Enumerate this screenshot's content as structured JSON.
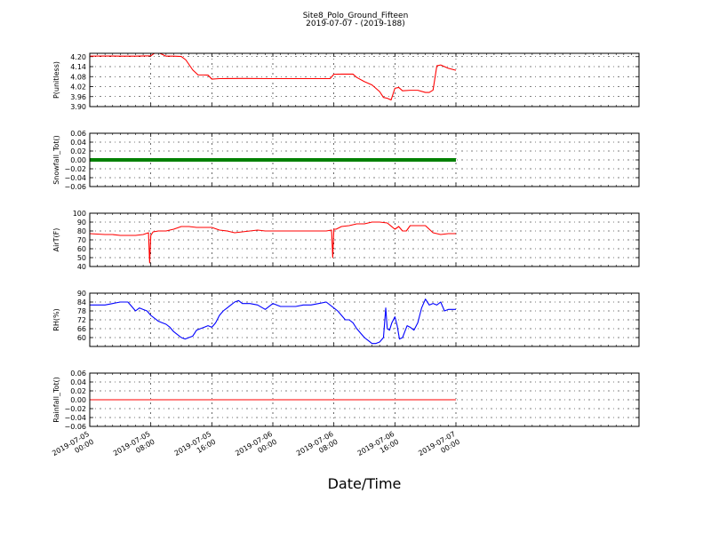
{
  "figure": {
    "title": "Site8_Polo_Ground_Fifteen",
    "subtitle": "2019-07-07 - (2019-188)",
    "xlabel": "Date/Time"
  },
  "chart_data": [
    {
      "type": "line",
      "ylabel": "P(unitless)",
      "ylim": [
        3.9,
        4.22
      ],
      "yticks": [
        "4.20",
        "4.14",
        "4.08",
        "4.02",
        "3.96",
        "3.90"
      ],
      "xlim": [
        0,
        72
      ],
      "xtick_hours": [
        0,
        8,
        16,
        24,
        32,
        40,
        48
      ],
      "xtick_labels": [
        [
          "2019-07-05",
          "00:00"
        ],
        [
          "2019-07-05",
          "08:00"
        ],
        [
          "2019-07-05",
          "16:00"
        ],
        [
          "2019-07-06",
          "00:00"
        ],
        [
          "2019-07-06",
          "08:00"
        ],
        [
          "2019-07-06",
          "16:00"
        ],
        [
          "2019-07-07",
          "00:00"
        ]
      ],
      "grid": true,
      "series": [
        {
          "color": "#ff0000",
          "x": [
            0,
            2,
            4,
            6,
            8,
            8.6,
            9,
            10,
            11,
            12,
            12.6,
            13.5,
            14.2,
            15,
            15.5,
            16,
            17,
            20,
            24,
            28,
            30,
            31.5,
            32,
            33,
            34.5,
            35,
            36,
            37,
            38,
            38.5,
            39,
            39.5,
            40,
            40.5,
            41,
            42,
            43,
            44,
            44.5,
            45,
            45.5,
            46,
            47,
            48
          ],
          "y": [
            4.203,
            4.204,
            4.203,
            4.203,
            4.205,
            4.224,
            4.224,
            4.203,
            4.203,
            4.201,
            4.18,
            4.12,
            4.09,
            4.09,
            4.089,
            4.065,
            4.068,
            4.069,
            4.068,
            4.068,
            4.068,
            4.068,
            4.094,
            4.095,
            4.095,
            4.075,
            4.05,
            4.03,
            3.99,
            3.955,
            3.95,
            3.94,
            4.01,
            4.015,
            3.995,
            3.998,
            3.998,
            3.985,
            3.985,
            3.999,
            4.145,
            4.15,
            4.13,
            4.118
          ]
        }
      ]
    },
    {
      "type": "line",
      "ylabel": "Snowfall_Tot()",
      "ylim": [
        -0.06,
        0.06
      ],
      "yticks": [
        "0.06",
        "0.04",
        "0.02",
        "0.00",
        "−0.02",
        "−0.04",
        "−0.06"
      ],
      "xlim": [
        0,
        72
      ],
      "grid": true,
      "series": [
        {
          "color": "#008000",
          "x": [
            0,
            48
          ],
          "y": [
            0,
            0
          ]
        }
      ]
    },
    {
      "type": "line",
      "ylabel": "AirT(F)",
      "ylim": [
        40,
        100
      ],
      "yticks": [
        "100",
        "90",
        "80",
        "70",
        "60",
        "50",
        "40"
      ],
      "xlim": [
        0,
        72
      ],
      "grid": true,
      "series": [
        {
          "color": "#ff0000",
          "x": [
            0,
            2,
            3,
            4,
            5,
            6,
            7,
            7.7,
            7.85,
            8,
            8.3,
            9,
            10,
            11,
            12,
            13,
            14,
            15,
            16,
            17,
            18,
            19,
            20,
            21,
            22,
            23,
            24,
            25,
            26,
            27,
            28,
            29,
            30,
            31,
            31.7,
            31.85,
            32,
            32.3,
            33,
            34,
            35,
            36,
            37,
            38,
            39,
            40,
            40.5,
            41,
            41.5,
            42,
            43,
            44,
            45,
            46,
            47,
            48
          ],
          "y": [
            77,
            76,
            76,
            75,
            75,
            75,
            76,
            78,
            44,
            75,
            79,
            80,
            80,
            82,
            85,
            85,
            84,
            84,
            84,
            81,
            80,
            78,
            79,
            80,
            81,
            80,
            80,
            80,
            80,
            80,
            80,
            80,
            80,
            80,
            81,
            50,
            82,
            82,
            85,
            86,
            88,
            88,
            90,
            90,
            89,
            82,
            85,
            80,
            80,
            86,
            86,
            86,
            78,
            76,
            77,
            77
          ]
        }
      ]
    },
    {
      "type": "line",
      "ylabel": "RH(%)",
      "ylim": [
        54,
        90
      ],
      "yticks": [
        "90",
        "84",
        "78",
        "72",
        "66",
        "60"
      ],
      "xlim": [
        0,
        72
      ],
      "grid": true,
      "series": [
        {
          "color": "#0000ff",
          "x": [
            0,
            1,
            2,
            3,
            4,
            5,
            6,
            6.5,
            7,
            7.5,
            8,
            8.5,
            9,
            9.5,
            10,
            10.5,
            11,
            11.5,
            12,
            12.5,
            13,
            13.5,
            14,
            14.5,
            15,
            15.5,
            16,
            16.5,
            17,
            17.5,
            18,
            18.5,
            19,
            19.5,
            20,
            21,
            22,
            23,
            24,
            25,
            26,
            27,
            28,
            29,
            30,
            31,
            32,
            32.5,
            33,
            33.5,
            34,
            34.5,
            35,
            35.5,
            36,
            36.5,
            37,
            37.5,
            38,
            38.5,
            38.8,
            39,
            39.3,
            39.6,
            40,
            40.3,
            40.6,
            41,
            41.3,
            41.6,
            42,
            42.5,
            43,
            43.5,
            44,
            44.5,
            45,
            45.5,
            46,
            46.5,
            47,
            47.5,
            48
          ],
          "y": [
            82,
            82,
            82,
            83,
            84,
            84,
            78,
            80,
            79,
            78,
            75,
            73,
            71,
            70,
            69,
            67,
            64,
            62,
            60,
            59,
            60,
            61,
            65,
            66,
            67,
            68,
            67,
            70,
            75,
            78,
            80,
            82,
            84,
            85,
            83,
            83,
            82,
            79,
            83,
            81,
            81,
            81,
            82,
            82,
            83,
            84,
            80,
            78,
            75,
            72,
            72,
            70,
            66,
            63,
            60,
            58,
            56,
            56,
            57,
            60,
            80,
            66,
            65,
            70,
            74,
            68,
            59,
            60,
            64,
            68,
            67,
            65,
            70,
            80,
            86,
            82,
            83,
            82,
            84,
            78,
            79,
            79,
            79
          ]
        }
      ]
    },
    {
      "type": "line",
      "ylabel": "Rainfall_Tot()",
      "ylim": [
        -0.06,
        0.06
      ],
      "yticks": [
        "0.06",
        "0.04",
        "0.02",
        "0.00",
        "−0.02",
        "−0.04",
        "−0.06"
      ],
      "xlim": [
        0,
        72
      ],
      "grid": true,
      "series": [
        {
          "color": "#ff0000",
          "x": [
            0,
            48
          ],
          "y": [
            0,
            0
          ]
        }
      ]
    }
  ]
}
